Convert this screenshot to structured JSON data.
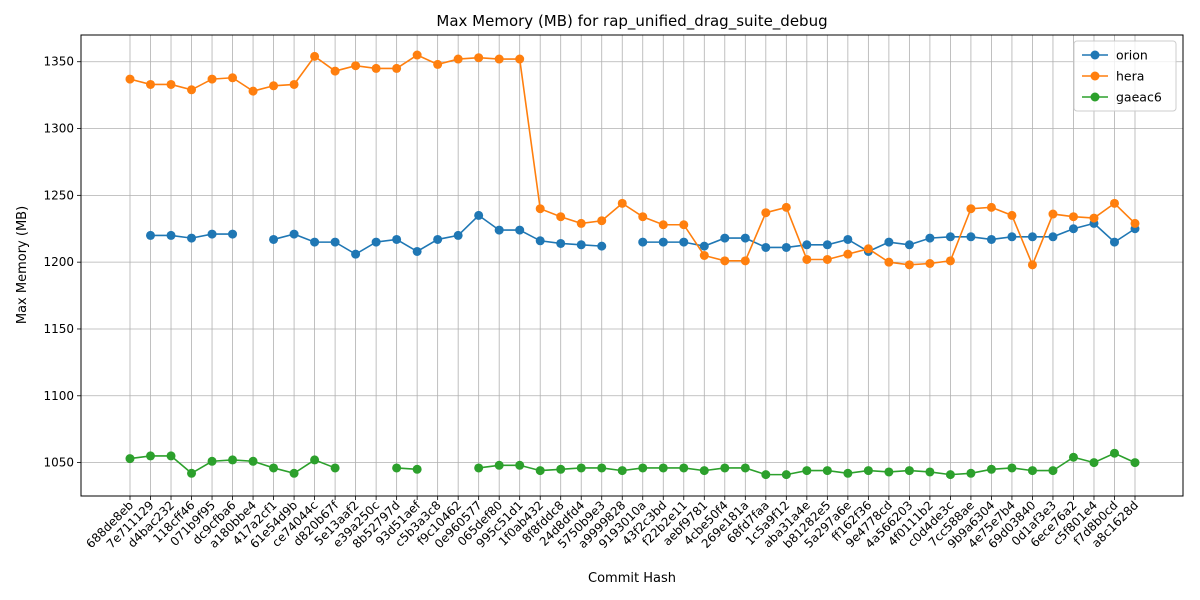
{
  "chart_data": {
    "type": "line",
    "title": "Max Memory (MB) for rap_unified_drag_suite_debug",
    "xlabel": "Commit Hash",
    "ylabel": "Max Memory (MB)",
    "ylim": [
      1025,
      1370
    ],
    "yticks": [
      1050,
      1100,
      1150,
      1200,
      1250,
      1300,
      1350
    ],
    "grid": true,
    "legend_position": "upper right",
    "categories": [
      "688de8eb",
      "7e711129",
      "d4bac232",
      "118cff46",
      "071b9f95",
      "dc9cfba6",
      "a180bbe4",
      "417a2cf1",
      "61e54d9b",
      "ce74044c",
      "d820b67f",
      "5e13aaf2",
      "e39a250c",
      "8b52797d",
      "93d51aef",
      "c5b3a3c8",
      "f9c10462",
      "0e960577",
      "065def80",
      "995c51d1",
      "1f0ab432",
      "8f8fddc8",
      "24d8dfd4",
      "5750b9e3",
      "a9999828",
      "9193010a",
      "43f2c3bd",
      "f22b2e11",
      "aebf9781",
      "4cbe50f4",
      "269e181a",
      "68fd7faa",
      "1c5a9f12",
      "aba31a4e",
      "b81282e5",
      "5a297a6e",
      "ff162f36",
      "9e4778cd",
      "4a566203",
      "4f0111b2",
      "c0d4de3c",
      "7cc588ae",
      "9b9a6304",
      "4e75e7b4",
      "69d03840",
      "0d1af3e3",
      "6ece76a2",
      "c5f801e4",
      "f7d8b0cd",
      "a8c1628d"
    ],
    "series": [
      {
        "name": "orion",
        "color": "#1f77b4",
        "values": [
          null,
          1220,
          1220,
          1218,
          1221,
          1221,
          null,
          1217,
          1221,
          1215,
          1215,
          1206,
          1215,
          1217,
          1208,
          1217,
          1220,
          1235,
          1224,
          1224,
          1216,
          1214,
          1213,
          1212,
          null,
          1215,
          1215,
          1215,
          1212,
          1218,
          1218,
          1211,
          1211,
          1213,
          1213,
          1217,
          1208,
          1215,
          1213,
          1218,
          1219,
          1219,
          1217,
          1219,
          1219,
          1219,
          1225,
          1229,
          1215,
          1225
        ]
      },
      {
        "name": "hera",
        "color": "#ff7f0e",
        "values": [
          1337,
          1333,
          1333,
          1329,
          1337,
          1338,
          1328,
          1332,
          1333,
          1354,
          1343,
          1347,
          1345,
          1345,
          1355,
          1348,
          1352,
          1353,
          1352,
          1352,
          1240,
          1234,
          1229,
          1231,
          1244,
          1234,
          1228,
          1228,
          1205,
          1201,
          1201,
          1237,
          1241,
          1202,
          1202,
          1206,
          1210,
          1200,
          1198,
          1199,
          1201,
          1240,
          1241,
          1235,
          1198,
          1236,
          1234,
          1233,
          1244,
          1229
        ]
      },
      {
        "name": "gaeac6",
        "color": "#2ca02c",
        "values": [
          1053,
          1055,
          1055,
          1042,
          1051,
          1052,
          1051,
          1046,
          1042,
          1052,
          1046,
          null,
          null,
          1046,
          1045,
          null,
          null,
          1046,
          1048,
          1048,
          1044,
          1045,
          1046,
          1046,
          1044,
          1046,
          1046,
          1046,
          1044,
          1046,
          1046,
          1041,
          1041,
          1044,
          1044,
          1042,
          1044,
          1043,
          1044,
          1043,
          1041,
          1042,
          1045,
          1046,
          1044,
          1044,
          1054,
          1050,
          1057,
          1050
        ]
      }
    ]
  }
}
